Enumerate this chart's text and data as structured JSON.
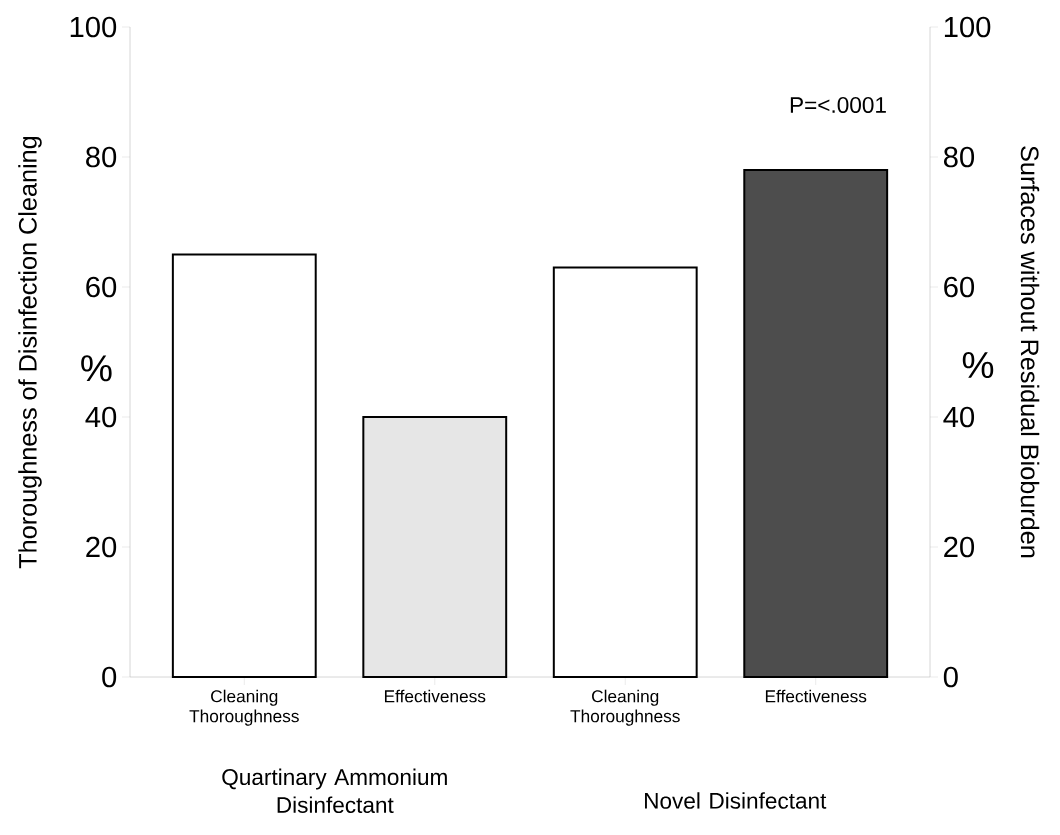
{
  "chart_data": {
    "type": "bar",
    "categories": [
      "Cleaning Thoroughness",
      "Effectiveness",
      "Cleaning Thoroughness",
      "Effectiveness"
    ],
    "values": [
      65,
      40,
      63,
      78
    ],
    "colors": [
      "#ffffff",
      "#e6e6e6",
      "#ffffff",
      "#4d4d4d"
    ],
    "ylabel": "Thoroughness of Disinfection Cleaning",
    "y2label": "Surfaces without Residual Bioburden",
    "ylim": [
      0,
      100
    ],
    "yticks": [
      0,
      20,
      40,
      60,
      80,
      100
    ],
    "y2lim": [
      0,
      100
    ],
    "y2ticks": [
      0,
      20,
      40,
      60,
      80,
      100
    ],
    "annotations": [
      "%",
      "%",
      "P=<.0001",
      "Quartinary Ammonium Disinfectant",
      "Novel Disinfectant"
    ]
  }
}
